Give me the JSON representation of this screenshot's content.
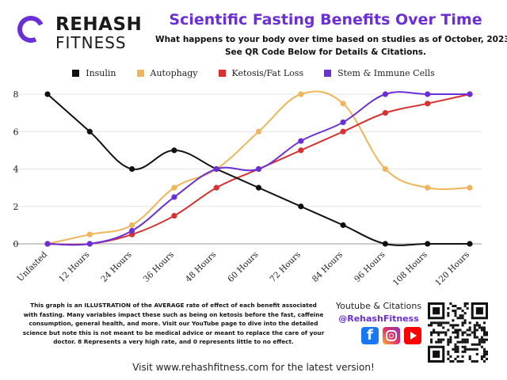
{
  "header": {
    "brand": "REHASH",
    "brand_sub": "FITNESS",
    "title": "Scientific Fasting Benefits Over Time",
    "subtitle_line1": "What happens to your body over time based on studies as of October, 2023.",
    "subtitle_line2": "See QR Code Below for Details & Citations."
  },
  "chart_data": {
    "type": "line",
    "title": "Scientific Fasting Benefits Over Time",
    "xlabel": "",
    "ylabel": "",
    "categories": [
      "Unfasted",
      "12 Hours",
      "24 Hours",
      "36 Hours",
      "48 Hours",
      "60 Hours",
      "72 Hours",
      "84 Hours",
      "96 Hours",
      "108 Hours",
      "120 Hours"
    ],
    "ylim": [
      0,
      8
    ],
    "yticks": [
      0,
      2,
      4,
      6,
      8
    ],
    "grid": true,
    "legend_position": "top",
    "series": [
      {
        "name": "Insulin",
        "color": "#111111",
        "values": [
          8,
          6,
          4,
          5,
          4,
          3,
          2,
          1,
          0,
          0,
          0
        ]
      },
      {
        "name": "Autophagy",
        "color": "#f0b55a",
        "values": [
          0,
          0.5,
          1,
          3,
          4,
          6,
          8,
          7.5,
          4,
          3,
          3
        ]
      },
      {
        "name": "Ketosis/Fat Loss",
        "color": "#d93030",
        "values": [
          0,
          0,
          0.5,
          1.5,
          3,
          4,
          5,
          6,
          7,
          7.5,
          8
        ]
      },
      {
        "name": "Stem & Immune Cells",
        "color": "#6a2fd6",
        "values": [
          0,
          0,
          0.7,
          2.5,
          4,
          4,
          5.5,
          6.5,
          8,
          8,
          8
        ]
      }
    ]
  },
  "footnote": "This graph is an ILLUSTRATION of the AVERAGE rate of effect of each benefit associated with fasting. Many variables impact these such as being on ketosis before the fast, caffeine consumption, general health, and more. Visit our YouTube page to dive into the detailed science but note this is not meant to be medical advice or meant to replace the care of your doctor. 8 Represents a very high rate, and 0 represents little to no effect.",
  "social": {
    "title": "Youtube & Citations",
    "handle": "@RehashFitness",
    "icons": [
      "facebook-icon",
      "instagram-icon",
      "youtube-icon"
    ]
  },
  "footer": "Visit www.rehashfitness.com for the latest version!",
  "colors": {
    "accent": "#6a2fd6"
  }
}
